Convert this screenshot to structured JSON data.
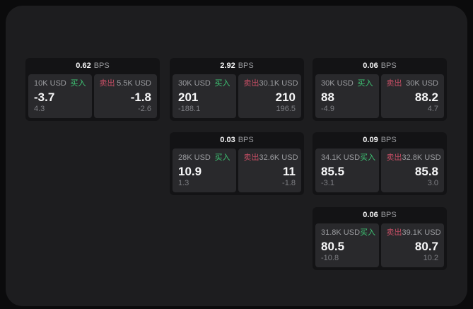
{
  "labels": {
    "bps": "BPS",
    "buy": "买入",
    "sell": "卖出"
  },
  "colors": {
    "outer_bg": "#0b0b0c",
    "panel_bg": "#1d1d1f",
    "card_bg": "#131315",
    "subpanel_bg": "#29292c",
    "buy_green": "#3ec775",
    "sell_red": "#c44e64",
    "text_primary": "#f7f7f8",
    "text_secondary": "#9b9ca0",
    "text_dim": "#7e7f84"
  },
  "cards": [
    {
      "bps": "0.62",
      "buy": {
        "size": "10K USD",
        "value": "-3.7",
        "delta": "4.3"
      },
      "sell": {
        "size": "5.5K USD",
        "value": "-1.8",
        "delta": "-2.6"
      }
    },
    {
      "bps": "2.92",
      "buy": {
        "size": "30K USD",
        "value": "201",
        "delta": "-188.1"
      },
      "sell": {
        "size": "30.1K USD",
        "value": "210",
        "delta": "196.5"
      }
    },
    {
      "bps": "0.06",
      "buy": {
        "size": "30K USD",
        "value": "88",
        "delta": "-4.9"
      },
      "sell": {
        "size": "30K USD",
        "value": "88.2",
        "delta": "4.7"
      }
    },
    {
      "bps": "0.03",
      "buy": {
        "size": "28K USD",
        "value": "10.9",
        "delta": "1.3"
      },
      "sell": {
        "size": "32.6K USD",
        "value": "11",
        "delta": "-1.8"
      }
    },
    {
      "bps": "0.09",
      "buy": {
        "size": "34.1K USD",
        "value": "85.5",
        "delta": "-3.1"
      },
      "sell": {
        "size": "32.8K USD",
        "value": "85.8",
        "delta": "3.0"
      }
    },
    {
      "bps": "0.06",
      "buy": {
        "size": "31.8K USD",
        "value": "80.5",
        "delta": "-10.8"
      },
      "sell": {
        "size": "39.1K USD",
        "value": "80.7",
        "delta": "10.2"
      }
    }
  ]
}
